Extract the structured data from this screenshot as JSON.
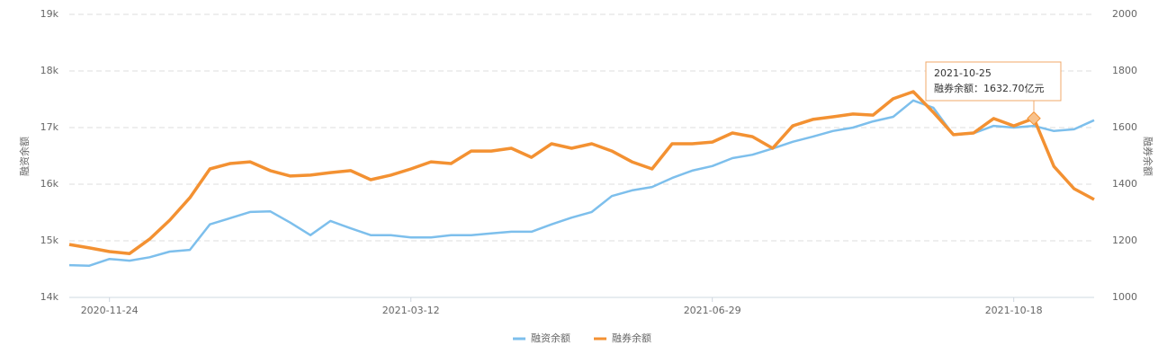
{
  "chart_data": {
    "type": "line",
    "categories": [
      null,
      null,
      "2020-11-24",
      null,
      null,
      null,
      null,
      null,
      null,
      null,
      null,
      null,
      null,
      null,
      null,
      null,
      null,
      "2021-03-12",
      null,
      null,
      null,
      null,
      null,
      null,
      null,
      null,
      null,
      null,
      null,
      null,
      null,
      null,
      "2021-06-29",
      null,
      null,
      null,
      null,
      null,
      null,
      null,
      null,
      null,
      null,
      null,
      null,
      null,
      null,
      "2021-10-18",
      "2021-10-25",
      null,
      null,
      null
    ],
    "series": [
      {
        "name": "融资余额",
        "color": "#7dbfec",
        "axis": "y",
        "values": [
          14570,
          14560,
          14680,
          14650,
          14710,
          14810,
          14840,
          15290,
          15400,
          15510,
          15520,
          15320,
          15100,
          15350,
          15220,
          15100,
          15100,
          15060,
          15060,
          15100,
          15100,
          15130,
          15160,
          15160,
          15290,
          15410,
          15510,
          15790,
          15890,
          15950,
          16110,
          16240,
          16320,
          16460,
          16520,
          16630,
          16750,
          16840,
          16940,
          17000,
          17110,
          17190,
          17480,
          17350,
          16870,
          16900,
          17030,
          17000,
          17030,
          16940,
          16970,
          17130
        ]
      },
      {
        "name": "融券余额",
        "color": "#f39132",
        "axis": "y2",
        "values": [
          1187,
          1175,
          1162,
          1155,
          1206,
          1273,
          1352,
          1454,
          1473,
          1479,
          1448,
          1429,
          1432,
          1441,
          1448,
          1416,
          1432,
          1454,
          1479,
          1473,
          1517,
          1517,
          1527,
          1495,
          1543,
          1527,
          1543,
          1517,
          1479,
          1454,
          1543,
          1543,
          1549,
          1581,
          1568,
          1527,
          1606,
          1629,
          1638,
          1648,
          1644,
          1702,
          1727,
          1654,
          1575,
          1581,
          1632,
          1606,
          1632.7,
          1463,
          1384,
          1346
        ]
      }
    ],
    "y_label": "融资余额",
    "y2_label": "融券余额",
    "ylim": [
      14000,
      19000
    ],
    "yticks": [
      {
        "value": 14000,
        "label": "14k"
      },
      {
        "value": 15000,
        "label": "15k"
      },
      {
        "value": 16000,
        "label": "16k"
      },
      {
        "value": 17000,
        "label": "17k"
      },
      {
        "value": 18000,
        "label": "18k"
      },
      {
        "value": 19000,
        "label": "19k"
      }
    ],
    "y2lim": [
      1000,
      2000
    ],
    "y2ticks": [
      1000,
      1200,
      1400,
      1600,
      1800,
      2000
    ],
    "grid": true,
    "tooltip": {
      "x": "2021-10-25",
      "text": "融券余额：1632.70亿元"
    }
  }
}
